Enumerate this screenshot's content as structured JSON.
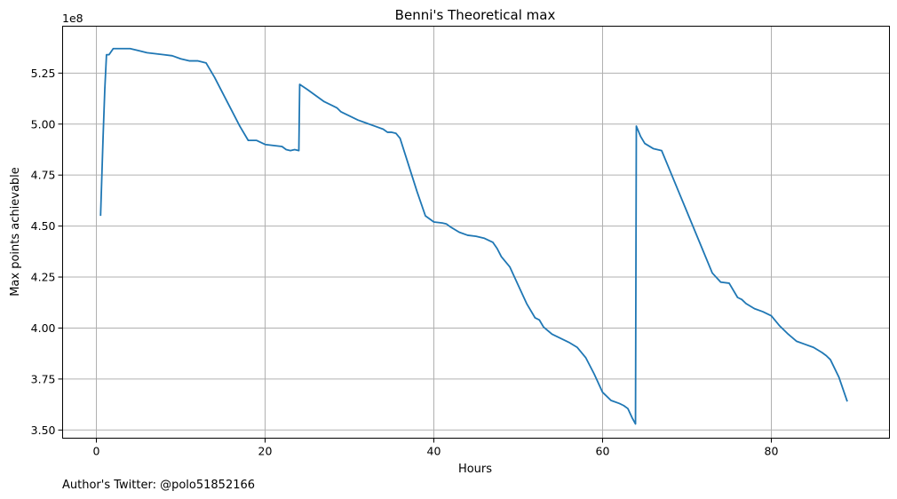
{
  "chart_data": {
    "type": "line",
    "title": "Benni's Theoretical max",
    "xlabel": "Hours",
    "ylabel": "Max points achievable",
    "offset_label": "1e8",
    "footer": "Author's Twitter: @polo51852166",
    "xlim": [
      -4,
      94
    ],
    "ylim": [
      3.46,
      5.48
    ],
    "xticks": [
      0,
      20,
      40,
      60,
      80
    ],
    "xtick_labels": [
      "0",
      "20",
      "40",
      "60",
      "80"
    ],
    "yticks": [
      3.5,
      3.75,
      4.0,
      4.25,
      4.5,
      4.75,
      5.0,
      5.25
    ],
    "ytick_labels": [
      "3.50",
      "3.75",
      "4.00",
      "4.25",
      "4.50",
      "4.75",
      "5.00",
      "5.25"
    ],
    "grid": true,
    "line_color": "#1f77b4",
    "series": [
      {
        "x": [
          0.5,
          0.8,
          1.0,
          1.2,
          1.5,
          2.0,
          3.0,
          4.0,
          5.0,
          6.0,
          7.0,
          8.0,
          9.0,
          10.0,
          11.0,
          12.0,
          13.0,
          14.0,
          15.0,
          16.0,
          17.0,
          18.0,
          18.5,
          19.0,
          20.0,
          21.0,
          22.0,
          22.5,
          23.0,
          23.5,
          24.0,
          24.1,
          25.0,
          26.0,
          27.0,
          28.0,
          28.5,
          29.0,
          30.0,
          31.0,
          32.0,
          33.0,
          34.0,
          34.5,
          35.0,
          35.5,
          36.0,
          37.0,
          38.0,
          39.0,
          40.0,
          41.0,
          41.5,
          42.0,
          43.0,
          44.0,
          45.0,
          46.0,
          47.0,
          47.5,
          48.0,
          49.0,
          50.0,
          51.0,
          52.0,
          52.5,
          53.0,
          54.0,
          55.0,
          56.0,
          57.0,
          58.0,
          59.0,
          60.0,
          61.0,
          62.0,
          62.5,
          63.0,
          63.5,
          63.9,
          64.0,
          64.5,
          65.0,
          66.0,
          67.0,
          68.0,
          69.0,
          70.0,
          71.0,
          72.0,
          73.0,
          74.0,
          75.0,
          76.0,
          76.5,
          77.0,
          78.0,
          79.0,
          80.0,
          81.0,
          82.0,
          83.0,
          84.0,
          85.0,
          86.0,
          86.5,
          87.0,
          88.0,
          89.0
        ],
        "y": [
          4.55,
          4.94,
          5.17,
          5.34,
          5.34,
          5.37,
          5.37,
          5.37,
          5.36,
          5.35,
          5.345,
          5.34,
          5.335,
          5.32,
          5.31,
          5.31,
          5.3,
          5.23,
          5.15,
          5.07,
          4.99,
          4.92,
          4.92,
          4.92,
          4.9,
          4.895,
          4.89,
          4.875,
          4.87,
          4.875,
          4.87,
          5.195,
          5.17,
          5.14,
          5.11,
          5.09,
          5.08,
          5.06,
          5.04,
          5.02,
          5.005,
          4.99,
          4.975,
          4.96,
          4.96,
          4.955,
          4.93,
          4.8,
          4.67,
          4.55,
          4.52,
          4.515,
          4.51,
          4.495,
          4.47,
          4.455,
          4.45,
          4.44,
          4.42,
          4.39,
          4.35,
          4.3,
          4.21,
          4.12,
          4.05,
          4.04,
          4.005,
          3.97,
          3.95,
          3.93,
          3.905,
          3.855,
          3.775,
          3.685,
          3.645,
          3.63,
          3.62,
          3.605,
          3.56,
          3.53,
          4.99,
          4.94,
          4.905,
          4.88,
          4.87,
          4.77,
          4.67,
          4.57,
          4.47,
          4.37,
          4.27,
          4.225,
          4.22,
          4.15,
          4.14,
          4.12,
          4.095,
          4.08,
          4.06,
          4.01,
          3.97,
          3.935,
          3.92,
          3.905,
          3.88,
          3.865,
          3.845,
          3.76,
          3.64
        ]
      }
    ]
  }
}
